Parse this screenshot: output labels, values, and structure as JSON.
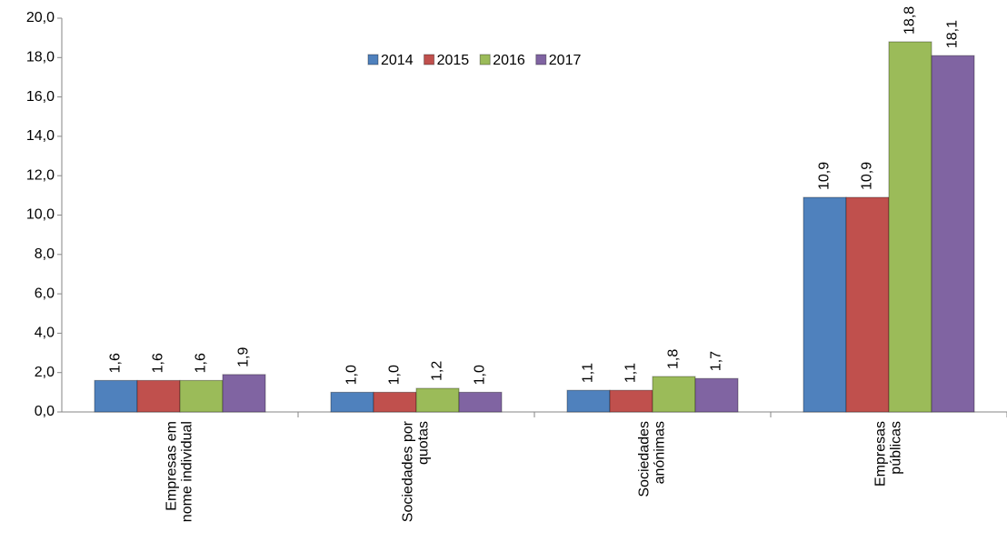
{
  "chart_data": {
    "type": "bar",
    "categories": [
      "Empresas em\nnome individual",
      "Sociedades por\nquotas",
      "Sociedades\nanónimas",
      "Empresas\npúblicas"
    ],
    "series": [
      {
        "name": "2014",
        "color": "#4f81bd",
        "values": [
          1.6,
          1.0,
          1.1,
          10.9
        ],
        "value_labels": [
          "1,6",
          "1,0",
          "1,1",
          "10,9"
        ]
      },
      {
        "name": "2015",
        "color": "#c0504d",
        "values": [
          1.6,
          1.0,
          1.1,
          10.9
        ],
        "value_labels": [
          "1,6",
          "1,0",
          "1,1",
          "10,9"
        ]
      },
      {
        "name": "2016",
        "color": "#9bbb59",
        "values": [
          1.6,
          1.2,
          1.8,
          18.8
        ],
        "value_labels": [
          "1,6",
          "1,2",
          "1,8",
          "18,8"
        ]
      },
      {
        "name": "2017",
        "color": "#8064a2",
        "values": [
          1.9,
          1.0,
          1.7,
          18.1
        ],
        "value_labels": [
          "1,9",
          "1,0",
          "1,7",
          "18,1"
        ]
      }
    ],
    "ylim": [
      0,
      20
    ],
    "yticks": [
      {
        "value": 0,
        "label": "0,0"
      },
      {
        "value": 2,
        "label": "2,0"
      },
      {
        "value": 4,
        "label": "4,0"
      },
      {
        "value": 6,
        "label": "6,0"
      },
      {
        "value": 8,
        "label": "8,0"
      },
      {
        "value": 10,
        "label": "10,0"
      },
      {
        "value": 12,
        "label": "12,0"
      },
      {
        "value": 14,
        "label": "14,0"
      },
      {
        "value": 16,
        "label": "16,0"
      },
      {
        "value": 18,
        "label": "18,0"
      },
      {
        "value": 20,
        "label": "20,0"
      }
    ],
    "legend": "top"
  }
}
